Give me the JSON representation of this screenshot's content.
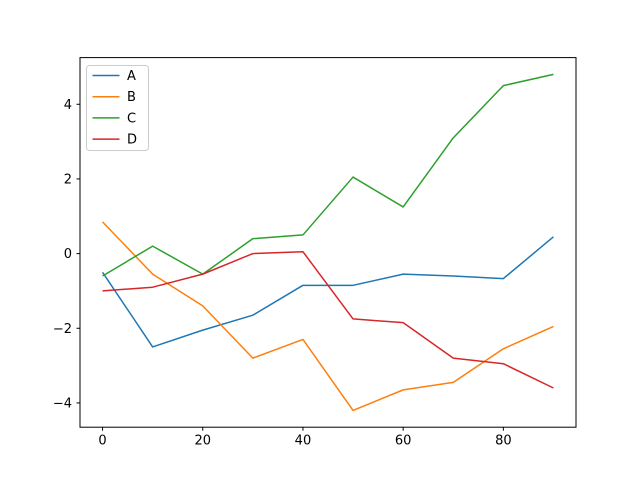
{
  "figure": {
    "background_color": "#ffffff",
    "axes_edge_color": "#000000",
    "tick_color": "#000000",
    "legend_edge_color": "#cccccc",
    "legend_face_color": "#ffffff"
  },
  "chart_data": {
    "type": "line",
    "title": "",
    "xlabel": "",
    "ylabel": "",
    "grid": false,
    "x": [
      0,
      10,
      20,
      30,
      40,
      50,
      60,
      70,
      80,
      90
    ],
    "series": [
      {
        "name": "A",
        "color": "#1f77b4",
        "values": [
          -0.5,
          -2.5,
          -2.05,
          -1.65,
          -0.85,
          -0.85,
          -0.55,
          -0.6,
          -0.67,
          0.45
        ]
      },
      {
        "name": "B",
        "color": "#ff7f0e",
        "values": [
          0.85,
          -0.55,
          -1.4,
          -2.8,
          -2.3,
          -4.2,
          -3.65,
          -3.45,
          -2.55,
          -1.95
        ]
      },
      {
        "name": "C",
        "color": "#2ca02c",
        "values": [
          -0.6,
          0.2,
          -0.55,
          0.4,
          0.5,
          2.05,
          1.25,
          3.1,
          4.5,
          4.8
        ]
      },
      {
        "name": "D",
        "color": "#d62728",
        "values": [
          -1.0,
          -0.9,
          -0.55,
          0.0,
          0.05,
          -1.75,
          -1.85,
          -2.8,
          -2.95,
          -3.6
        ]
      }
    ],
    "xlim": [
      -4.5,
      94.5
    ],
    "ylim": [
      -4.65,
      5.25
    ],
    "xticks": [
      0,
      20,
      40,
      60,
      80
    ],
    "yticks": [
      -4,
      -2,
      0,
      2,
      4
    ],
    "xtick_labels": [
      "0",
      "20",
      "40",
      "60",
      "80"
    ],
    "ytick_labels": [
      "−4",
      "−2",
      "0",
      "2",
      "4"
    ],
    "legend": {
      "position": "upper left",
      "entries": [
        "A",
        "B",
        "C",
        "D"
      ]
    }
  }
}
